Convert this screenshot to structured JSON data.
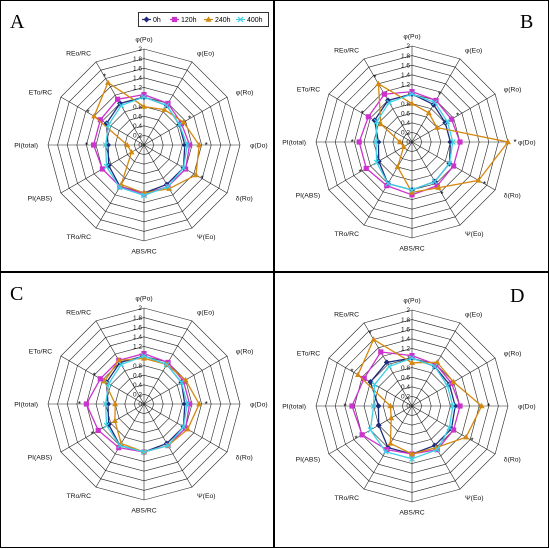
{
  "legend": {
    "items": [
      {
        "label": "0h",
        "color": "#1f2a7a",
        "marker": "diamond"
      },
      {
        "label": "120h",
        "color": "#cc33cc",
        "marker": "square"
      },
      {
        "label": "240h",
        "color": "#d4880f",
        "marker": "triangle"
      },
      {
        "label": "400h",
        "color": "#3fd0e6",
        "marker": "x"
      }
    ]
  },
  "chart_data": [
    {
      "type": "radar",
      "panel": "A",
      "axes": [
        "φ(Po)",
        "φ(Eo)",
        "φ(Ro)",
        "φ(Do)",
        "δ(Ro)",
        "Ψ(Eo)",
        "ABS/RC",
        "TRo/RC",
        "PI(ABS)",
        "PI(total)",
        "ETo/RC",
        "REo/RC"
      ],
      "ticks": [
        "0",
        "0.2",
        "0.4",
        "0.6",
        "0.8",
        "1",
        "1.2",
        "1.4",
        "1.6",
        "1.8",
        "2"
      ],
      "rlim": [
        0,
        2
      ],
      "series": [
        {
          "name": "0h",
          "values": [
            1.0,
            0.95,
            0.85,
            0.85,
            0.95,
            0.95,
            1.0,
            1.0,
            0.85,
            0.75,
            0.9,
            1.0
          ]
        },
        {
          "name": "120h",
          "values": [
            1.05,
            1.0,
            0.9,
            0.95,
            1.0,
            1.0,
            1.02,
            1.0,
            1.0,
            1.05,
            1.05,
            1.1
          ]
        },
        {
          "name": "240h",
          "values": [
            0.8,
            0.85,
            0.95,
            1.15,
            1.25,
            1.05,
            1.0,
            0.95,
            0.3,
            0.35,
            1.2,
            1.5
          ]
        },
        {
          "name": "400h",
          "values": [
            1.0,
            0.95,
            0.85,
            0.9,
            0.95,
            1.0,
            1.05,
            1.02,
            0.9,
            0.8,
            0.85,
            0.95
          ]
        }
      ],
      "stars": [
        2,
        3,
        4,
        9,
        10,
        11
      ]
    },
    {
      "type": "radar",
      "panel": "B",
      "axes": [
        "φ(Po)",
        "φ(Eo)",
        "φ(Ro)",
        "φ(Do)",
        "δ(Ro)",
        "Ψ(Eo)",
        "ABS/RC",
        "TRo/RC",
        "PI(ABS)",
        "PI(total)",
        "ETo/RC",
        "REo/RC"
      ],
      "ticks": [
        "0",
        "0.2",
        "0.4",
        "0.6",
        "0.8",
        "1",
        "1.2",
        "1.4",
        "1.6",
        "1.8",
        "2"
      ],
      "rlim": [
        0,
        2
      ],
      "series": [
        {
          "name": "0h",
          "values": [
            1.0,
            0.9,
            0.8,
            0.8,
            0.9,
            0.95,
            1.0,
            1.0,
            0.8,
            0.7,
            0.9,
            1.0
          ]
        },
        {
          "name": "120h",
          "values": [
            1.05,
            1.0,
            0.95,
            1.0,
            1.0,
            1.05,
            1.1,
            1.05,
            1.1,
            1.1,
            1.05,
            1.15
          ]
        },
        {
          "name": "240h",
          "values": [
            0.8,
            0.7,
            0.6,
            2.0,
            1.6,
            1.1,
            1.05,
            0.6,
            0.2,
            0.25,
            0.75,
            1.4
          ]
        },
        {
          "name": "400h",
          "values": [
            1.0,
            0.95,
            0.85,
            0.85,
            0.9,
            0.95,
            1.0,
            1.0,
            0.85,
            0.75,
            0.85,
            0.95
          ]
        }
      ],
      "stars": [
        1,
        2,
        3,
        4,
        5,
        8,
        9,
        10,
        11
      ]
    },
    {
      "type": "radar",
      "panel": "C",
      "axes": [
        "φ(Po)",
        "φ(Eo)",
        "φ(Ro)",
        "φ(Do)",
        "δ(Ro)",
        "Ψ(Eo)",
        "ABS/RC",
        "TRo/RC",
        "PI(ABS)",
        "PI(total)",
        "ETo/RC",
        "REo/RC"
      ],
      "ticks": [
        "0",
        "0.2",
        "0.4",
        "0.6",
        "0.8",
        "1",
        "1.2",
        "1.4",
        "1.6",
        "1.8",
        "2"
      ],
      "rlim": [
        0,
        2
      ],
      "series": [
        {
          "name": "0h",
          "values": [
            1.0,
            0.95,
            0.9,
            0.85,
            0.95,
            0.95,
            1.0,
            1.0,
            0.85,
            0.75,
            0.9,
            1.0
          ]
        },
        {
          "name": "120h",
          "values": [
            1.05,
            1.0,
            0.95,
            0.95,
            1.0,
            1.0,
            1.0,
            1.05,
            1.1,
            1.2,
            1.05,
            1.05
          ]
        },
        {
          "name": "240h",
          "values": [
            0.95,
            0.95,
            1.0,
            1.15,
            1.05,
            1.0,
            1.0,
            0.95,
            0.7,
            0.6,
            0.95,
            1.05
          ]
        },
        {
          "name": "400h",
          "values": [
            1.0,
            0.95,
            0.9,
            0.9,
            0.95,
            1.0,
            1.0,
            1.0,
            0.9,
            0.8,
            0.85,
            0.95
          ]
        }
      ],
      "stars": [
        3,
        8,
        9,
        10
      ]
    },
    {
      "type": "radar",
      "panel": "D",
      "axes": [
        "φ(Po)",
        "φ(Eo)",
        "φ(Ro)",
        "φ(Do)",
        "δ(Ro)",
        "Ψ(Eo)",
        "ABS/RC",
        "TRo/RC",
        "PI(ABS)",
        "PI(total)",
        "ETo/RC",
        "REo/RC"
      ],
      "ticks": [
        "0",
        "0.2",
        "0.4",
        "0.6",
        "0.8",
        "1",
        "1.2",
        "1.4",
        "1.6",
        "1.8",
        "2"
      ],
      "rlim": [
        0,
        2
      ],
      "series": [
        {
          "name": "0h",
          "values": [
            1.0,
            0.95,
            0.9,
            0.9,
            0.95,
            0.95,
            1.0,
            1.0,
            0.8,
            0.7,
            1.0,
            1.05
          ]
        },
        {
          "name": "120h",
          "values": [
            1.05,
            1.0,
            0.95,
            1.0,
            1.0,
            1.05,
            1.0,
            1.05,
            1.2,
            1.25,
            1.15,
            1.3
          ]
        },
        {
          "name": "240h",
          "values": [
            0.9,
            1.05,
            1.0,
            1.45,
            1.3,
            1.0,
            1.0,
            0.9,
            0.5,
            0.45,
            1.3,
            1.6
          ]
        },
        {
          "name": "400h",
          "values": [
            1.0,
            0.95,
            0.85,
            0.85,
            0.9,
            1.05,
            1.1,
            1.1,
            1.0,
            0.8,
            0.9,
            0.95
          ]
        }
      ],
      "stars": [
        3,
        4,
        8,
        9,
        10,
        11
      ]
    }
  ]
}
